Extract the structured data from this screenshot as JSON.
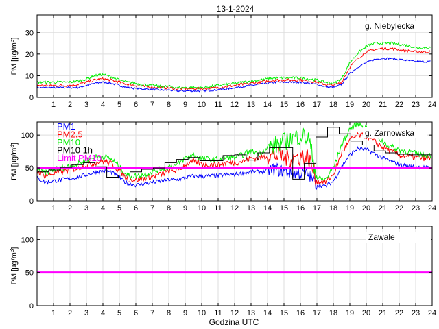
{
  "figure": {
    "title": "13-1-2024",
    "xlabel": "Godzina UTC",
    "colors": {
      "PM1": "#0000ff",
      "PM2.5": "#ff0000",
      "PM10": "#00ee00",
      "PM10 1h": "#000000",
      "Limit PM10": "#ff00ff",
      "grid": "#dddddd",
      "axis": "#000000"
    }
  },
  "chart_data": [
    {
      "type": "line",
      "station": "g. Niebyleckа",
      "ylabel": "PM [µg/m3]",
      "xlim": [
        0,
        24
      ],
      "ylim": [
        0,
        38
      ],
      "yticks": [
        0,
        10,
        20,
        30
      ],
      "xticks": [
        1,
        2,
        3,
        4,
        5,
        6,
        7,
        8,
        9,
        10,
        11,
        12,
        13,
        14,
        15,
        16,
        17,
        18,
        19,
        20,
        21,
        22,
        23,
        24
      ],
      "x": [
        0,
        0.5,
        1,
        1.5,
        2,
        2.5,
        3,
        3.5,
        4,
        4.5,
        5,
        5.5,
        6,
        6.5,
        7,
        7.5,
        8,
        8.5,
        9,
        9.5,
        10,
        10.5,
        11,
        11.5,
        12,
        12.5,
        13,
        13.5,
        14,
        14.5,
        15,
        15.5,
        16,
        16.5,
        17,
        17.5,
        18,
        18.5,
        19,
        19.5,
        20,
        20.5,
        21,
        21.5,
        22,
        22.5,
        23,
        23.5,
        23.9
      ],
      "series": [
        {
          "name": "PM1",
          "values": [
            4.5,
            4.5,
            4.5,
            4.5,
            4.5,
            4.5,
            5.5,
            6.5,
            7.0,
            6.5,
            5.5,
            4.5,
            4.0,
            3.8,
            3.6,
            3.4,
            3.3,
            3.0,
            3.0,
            3.0,
            3.0,
            3.2,
            3.5,
            3.8,
            4.5,
            5.0,
            5.5,
            6.0,
            6.5,
            7.0,
            7.0,
            7.0,
            7.0,
            6.5,
            6.0,
            5.0,
            4.5,
            6.0,
            11.0,
            14.0,
            16.0,
            17.5,
            18.0,
            18.0,
            17.5,
            17.0,
            16.5,
            16.5,
            16.5
          ]
        },
        {
          "name": "PM2.5",
          "values": [
            5.5,
            5.5,
            5.5,
            5.5,
            5.5,
            6.0,
            7.0,
            8.0,
            8.5,
            8.0,
            7.0,
            6.0,
            5.5,
            5.0,
            4.7,
            4.5,
            4.3,
            4.0,
            4.0,
            4.0,
            4.0,
            4.2,
            4.5,
            5.0,
            5.5,
            6.0,
            6.5,
            7.0,
            7.5,
            8.0,
            8.0,
            8.0,
            8.0,
            7.5,
            7.0,
            6.0,
            5.5,
            7.0,
            14.0,
            18.0,
            21.0,
            22.0,
            22.5,
            22.5,
            22.0,
            21.5,
            21.0,
            21.0,
            21.0
          ]
        },
        {
          "name": "PM10",
          "values": [
            7.0,
            7.0,
            7.0,
            7.0,
            7.0,
            7.5,
            8.5,
            10.0,
            10.5,
            9.5,
            8.0,
            7.0,
            6.5,
            6.0,
            5.5,
            5.0,
            5.0,
            4.5,
            4.5,
            4.5,
            4.5,
            5.0,
            5.5,
            6.0,
            6.5,
            7.0,
            7.5,
            8.0,
            8.5,
            9.0,
            9.0,
            9.0,
            9.0,
            8.5,
            8.0,
            7.0,
            6.5,
            8.5,
            16.0,
            20.5,
            23.5,
            25.0,
            25.0,
            25.0,
            24.5,
            24.0,
            23.0,
            23.0,
            23.0
          ]
        }
      ]
    },
    {
      "type": "line",
      "station": "g. Zarnowska",
      "ylabel": "PM [µg/m3]",
      "xlim": [
        0,
        24
      ],
      "ylim": [
        0,
        120
      ],
      "yticks": [
        0,
        50,
        100
      ],
      "xticks": [
        1,
        2,
        3,
        4,
        5,
        6,
        7,
        8,
        9,
        10,
        11,
        12,
        13,
        14,
        15,
        16,
        17,
        18,
        19,
        20,
        21,
        22,
        23,
        24
      ],
      "x": [
        0,
        0.5,
        1,
        1.5,
        2,
        2.5,
        3,
        3.5,
        4,
        4.5,
        5,
        5.5,
        6,
        6.5,
        7,
        7.5,
        8,
        8.5,
        9,
        9.5,
        10,
        10.5,
        11,
        11.5,
        12,
        12.5,
        13,
        13.5,
        14,
        14.5,
        15,
        15.5,
        16,
        16.5,
        17,
        17.5,
        18,
        18.5,
        19,
        19.5,
        20,
        20.5,
        21,
        21.5,
        22,
        22.5,
        23,
        23.5,
        23.9
      ],
      "series": [
        {
          "name": "PM1",
          "values": [
            35,
            28,
            30,
            32,
            34,
            36,
            40,
            43,
            45,
            44,
            35,
            26,
            24,
            26,
            28,
            30,
            32,
            32,
            35,
            38,
            37,
            38,
            38,
            40,
            40,
            42,
            44,
            44,
            46,
            48,
            45,
            42,
            42,
            40,
            25,
            22,
            30,
            52,
            70,
            80,
            78,
            72,
            65,
            60,
            55,
            53,
            52,
            51,
            50
          ]
        },
        {
          "name": "PM2.5",
          "values": [
            45,
            38,
            42,
            44,
            47,
            50,
            54,
            58,
            60,
            57,
            45,
            33,
            32,
            34,
            37,
            40,
            45,
            46,
            55,
            60,
            56,
            55,
            55,
            58,
            58,
            60,
            65,
            65,
            68,
            70,
            66,
            65,
            68,
            65,
            30,
            28,
            40,
            72,
            92,
            100,
            98,
            90,
            82,
            75,
            70,
            68,
            66,
            65,
            64
          ]
        },
        {
          "name": "PM10",
          "values": [
            50,
            42,
            48,
            50,
            53,
            57,
            62,
            66,
            68,
            64,
            52,
            38,
            38,
            40,
            44,
            48,
            52,
            54,
            65,
            70,
            65,
            63,
            63,
            66,
            66,
            70,
            75,
            73,
            80,
            85,
            90,
            95,
            100,
            95,
            35,
            32,
            50,
            85,
            110,
            118,
            112,
            100,
            90,
            82,
            78,
            75,
            72,
            70,
            70
          ]
        },
        {
          "name": "Limit PM10",
          "values": [
            50,
            50,
            50,
            50,
            50,
            50,
            50,
            50,
            50,
            50,
            50,
            50,
            50,
            50,
            50,
            50,
            50,
            50,
            50,
            50,
            50,
            50,
            50,
            50,
            50,
            50,
            50,
            50,
            50,
            50,
            50,
            50,
            50,
            50,
            50,
            50,
            50,
            50,
            50,
            50,
            50,
            50,
            50,
            50,
            50,
            50,
            50,
            50,
            50
          ]
        }
      ],
      "hourly": {
        "name": "PM10 1h",
        "values": [
          44,
          47,
          51,
          55,
          58,
          52,
          36,
          39,
          44,
          48,
          50,
          58,
          63,
          66,
          61,
          61,
          69,
          70,
          62,
          73,
          81,
          81,
          33,
          57,
          97,
          112,
          102,
          91,
          85,
          76,
          73,
          71,
          70,
          70
        ]
      },
      "legend": [
        "PM1",
        "PM2.5",
        "PM10",
        "PM10 1h",
        "Limit PM10"
      ]
    },
    {
      "type": "line",
      "station": "Zawale",
      "ylabel": "PM [µg/m3]",
      "xlim": [
        0,
        24
      ],
      "ylim": [
        0,
        120
      ],
      "yticks": [
        0,
        50,
        100
      ],
      "xticks": [
        1,
        2,
        3,
        4,
        5,
        6,
        7,
        8,
        9,
        10,
        11,
        12,
        13,
        14,
        15,
        16,
        17,
        18,
        19,
        20,
        21,
        22,
        23,
        24
      ],
      "x": [
        0,
        24
      ],
      "series": [
        {
          "name": "Limit PM10",
          "values": [
            50,
            50
          ]
        }
      ]
    }
  ]
}
